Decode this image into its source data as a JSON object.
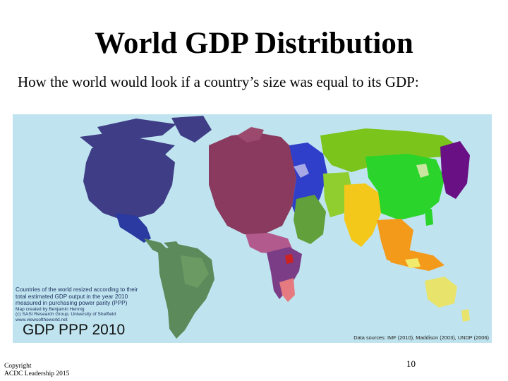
{
  "slide": {
    "title": "World GDP Distribution",
    "subtitle": "How the world would look if a country’s size was equal to its GDP:",
    "page_number": "10",
    "copyright": [
      "Copyright",
      "ACDC Leadership 2015"
    ]
  },
  "map": {
    "type": "cartogram",
    "label": "GDP PPP 2010",
    "legend_lines": [
      "Countries of the world resized according to their",
      "total estimated GDP output in the year 2010",
      "measured in purchasing power parity (PPP)",
      "Map created by Benjamin Hennig",
      "(c) SASI Research Group, University of Sheffield",
      "www.viewsoftheworld.net"
    ],
    "sources": "Data sources: IMF (2010), Maddison (2003), UNDP (2006)",
    "colors": {
      "ocean": "#bfe4ef",
      "north_america": "#3e3d86",
      "central_america": "#2a3aa0",
      "south_america": "#5d8a5a",
      "europe": "#8a3a5e",
      "eastern_europe": "#2f3fc9",
      "africa": "#7a3d86",
      "middle_east": "#61a03a",
      "russia_central_asia": "#7ac41c",
      "south_asia": "#f4c81a",
      "east_asia": "#2ad42a",
      "japan": "#6a1085",
      "southeast_asia": "#f39a1b",
      "oceania": "#e8e36a"
    }
  }
}
